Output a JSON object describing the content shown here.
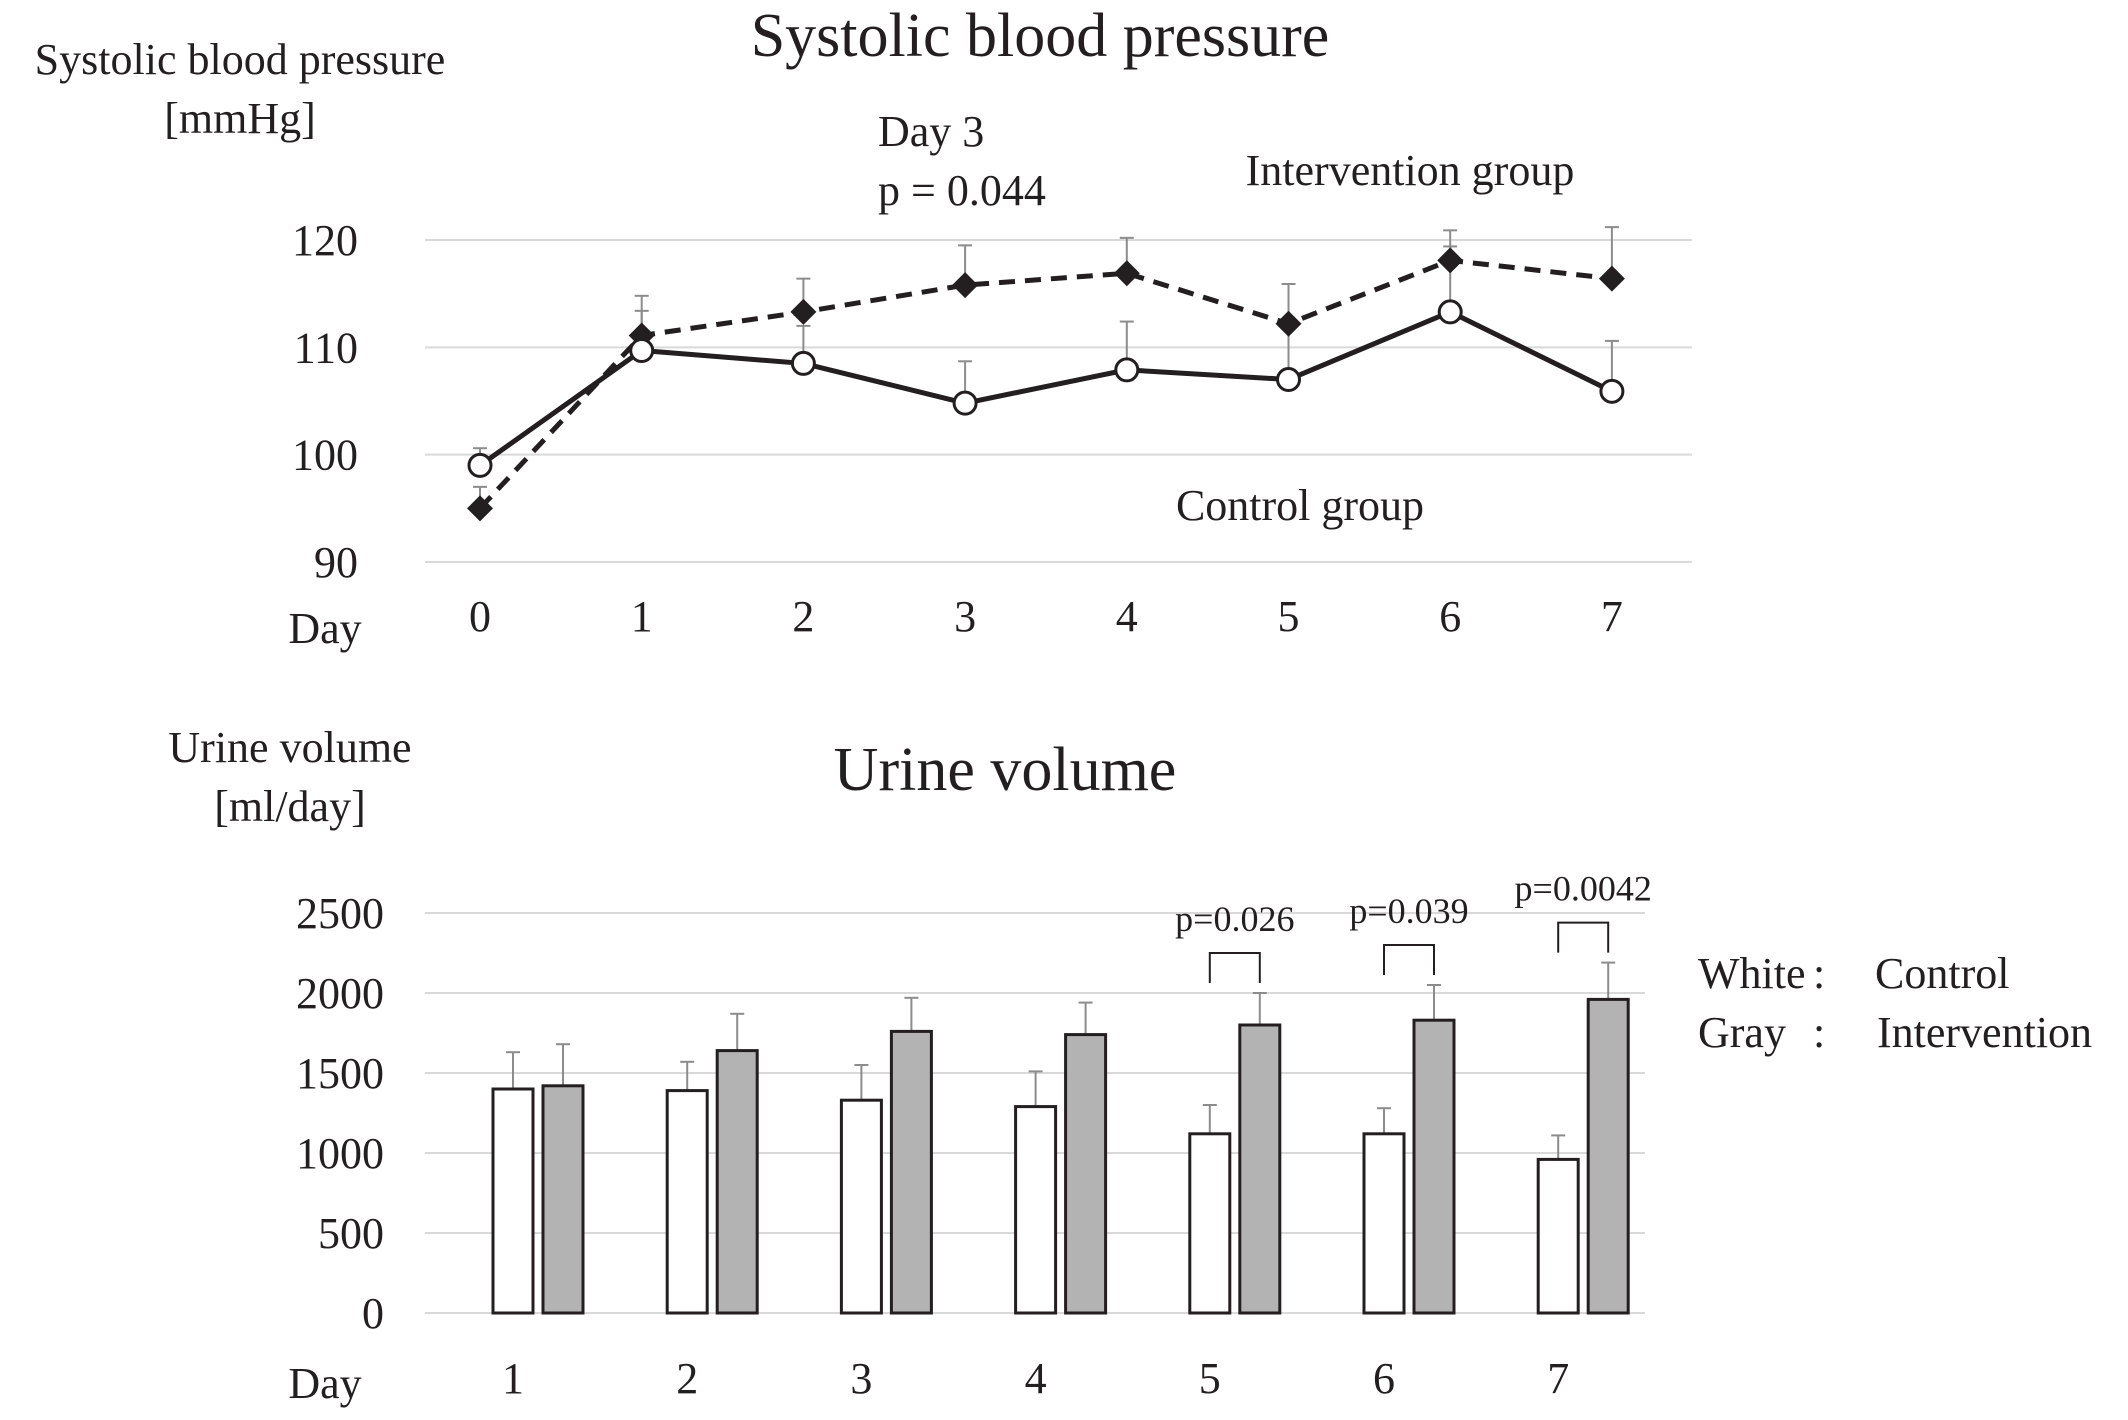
{
  "chart_data": [
    {
      "type": "line",
      "title": "Systolic blood pressure",
      "ylabel": [
        "Systolic blood pressure",
        "[mmHg]"
      ],
      "xlabel": "Day",
      "x": [
        0,
        1,
        2,
        3,
        4,
        5,
        6,
        7
      ],
      "xtick_labels": [
        "0",
        "1",
        "2",
        "3",
        "4",
        "5",
        "6",
        "7"
      ],
      "ylim": [
        90,
        120
      ],
      "yticks": [
        90,
        100,
        110,
        120
      ],
      "ytick_labels": [
        "90",
        "100",
        "110",
        "120"
      ],
      "grid": true,
      "series": [
        {
          "name": "Intervention group",
          "style": "dashed",
          "marker": "filled-diamond",
          "color": "#231f20",
          "values": [
            95.0,
            111.1,
            113.3,
            115.8,
            116.9,
            112.2,
            118.1,
            116.4
          ],
          "error": [
            2.0,
            3.7,
            3.1,
            3.7,
            3.3,
            3.7,
            2.8,
            4.8
          ]
        },
        {
          "name": "Control group",
          "style": "solid",
          "marker": "open-circle",
          "color": "#231f20",
          "values": [
            99.0,
            109.7,
            108.5,
            104.8,
            107.9,
            107.0,
            113.3,
            105.9
          ],
          "error": [
            1.6,
            3.7,
            3.5,
            3.9,
            4.5,
            4.7,
            6.1,
            4.7
          ]
        }
      ],
      "annotations": [
        {
          "text": [
            "Day 3",
            "p = 0.044"
          ]
        }
      ]
    },
    {
      "type": "bar",
      "title": "Urine volume",
      "ylabel": [
        "Urine volume",
        "[ml/day]"
      ],
      "xlabel": "Day",
      "categories": [
        "1",
        "2",
        "3",
        "4",
        "5",
        "6",
        "7"
      ],
      "ylim": [
        0,
        2500
      ],
      "yticks": [
        0,
        500,
        1000,
        1500,
        2000,
        2500
      ],
      "ytick_labels": [
        "0",
        "500",
        "1000",
        "1500",
        "2000",
        "2500"
      ],
      "grid": true,
      "series": [
        {
          "key": "control",
          "color": "#ffffff",
          "values": [
            1400,
            1390,
            1330,
            1290,
            1120,
            1120,
            960
          ],
          "error": [
            230,
            180,
            220,
            220,
            180,
            160,
            150
          ]
        },
        {
          "key": "intervention",
          "color": "#b3b3b3",
          "values": [
            1420,
            1640,
            1760,
            1740,
            1800,
            1830,
            1960
          ],
          "error": [
            260,
            230,
            210,
            200,
            200,
            220,
            230
          ]
        }
      ],
      "significance": [
        {
          "category": "5",
          "text": "p=0.026"
        },
        {
          "category": "6",
          "text": "p=0.039"
        },
        {
          "category": "7",
          "text": "p=0.0042"
        }
      ],
      "legend": {
        "position": "right",
        "items": [
          {
            "key": "White",
            "sep": ":",
            "label": "Control"
          },
          {
            "key": "Gray",
            "sep": ":",
            "label": "Intervention"
          }
        ]
      }
    }
  ]
}
